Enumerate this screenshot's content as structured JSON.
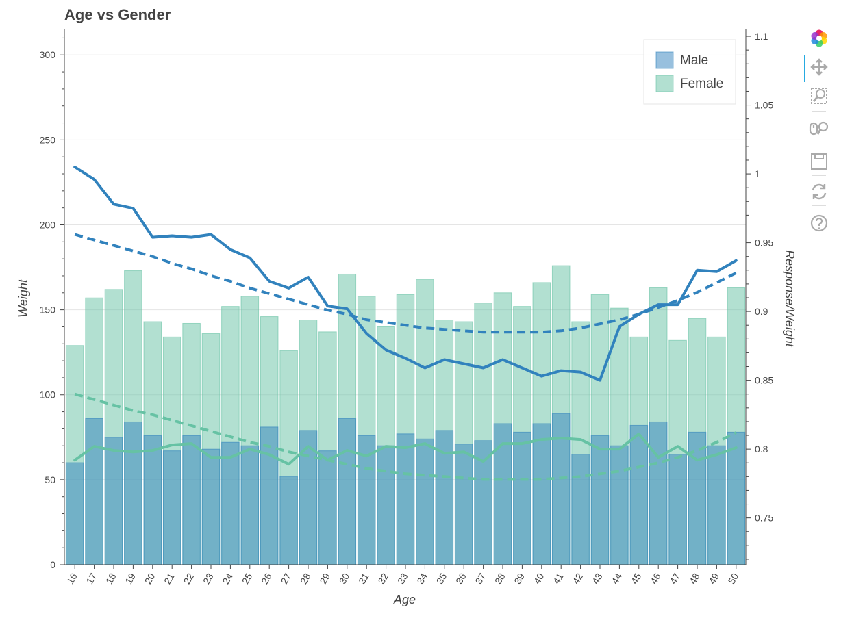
{
  "chart_data": {
    "type": "bar",
    "title": "Age vs Gender",
    "xlabel": "Age",
    "ylabel": "Weight",
    "y2label": "Response/Weight",
    "categories": [
      "16",
      "17",
      "18",
      "19",
      "20",
      "21",
      "22",
      "23",
      "24",
      "25",
      "26",
      "27",
      "28",
      "29",
      "30",
      "31",
      "32",
      "33",
      "34",
      "35",
      "36",
      "37",
      "38",
      "39",
      "40",
      "41",
      "42",
      "43",
      "44",
      "45",
      "46",
      "47",
      "48",
      "49",
      "50"
    ],
    "ylim": [
      0,
      315
    ],
    "y2lim": [
      0.716,
      1.105
    ],
    "yticks": [
      0,
      50,
      100,
      150,
      200,
      250,
      300
    ],
    "y2ticks": [
      0.75,
      0.8,
      0.85,
      0.9,
      0.95,
      1,
      1.05,
      1.1
    ],
    "y2tick_labels": [
      "0.75",
      "0.8",
      "0.85",
      "0.9",
      "0.95",
      "1",
      "1.05",
      "1.1"
    ],
    "grid": true,
    "legend_position": "top-right",
    "series": [
      {
        "name": "Male",
        "kind": "bar",
        "axis": "left",
        "color": "#3182bd",
        "values": [
          60,
          86,
          75,
          84,
          76,
          67,
          76,
          68,
          72,
          70,
          81,
          52,
          79,
          67,
          86,
          76,
          70,
          77,
          74,
          79,
          71,
          73,
          83,
          78,
          83,
          89,
          65,
          76,
          70,
          82,
          84,
          65,
          78,
          70,
          78
        ]
      },
      {
        "name": "Female",
        "kind": "bar",
        "axis": "left",
        "color": "#66c2a4",
        "values": [
          129,
          157,
          162,
          173,
          143,
          134,
          142,
          136,
          152,
          158,
          146,
          126,
          144,
          137,
          171,
          158,
          140,
          159,
          168,
          144,
          143,
          154,
          160,
          152,
          166,
          176,
          143,
          159,
          151,
          134,
          163,
          132,
          145,
          134,
          163
        ]
      },
      {
        "kind": "line",
        "axis": "right",
        "color": "#3182bd",
        "dash": "solid",
        "values": [
          1.005,
          0.996,
          0.978,
          0.975,
          0.954,
          0.955,
          0.954,
          0.956,
          0.945,
          0.939,
          0.922,
          0.917,
          0.925,
          0.904,
          0.902,
          0.884,
          0.872,
          0.866,
          0.859,
          0.865,
          0.862,
          0.859,
          0.865,
          0.859,
          0.853,
          0.857,
          0.856,
          0.85,
          0.889,
          0.898,
          0.905,
          0.905,
          0.93,
          0.929,
          0.937
        ]
      },
      {
        "kind": "line",
        "axis": "right",
        "color": "#3182bd",
        "dash": "dashed",
        "values": [
          0.956,
          0.952,
          0.948,
          0.944,
          0.94,
          0.935,
          0.931,
          0.926,
          0.922,
          0.917,
          0.913,
          0.909,
          0.905,
          0.901,
          0.898,
          0.894,
          0.892,
          0.89,
          0.888,
          0.887,
          0.886,
          0.885,
          0.885,
          0.885,
          0.885,
          0.886,
          0.888,
          0.891,
          0.894,
          0.898,
          0.903,
          0.908,
          0.914,
          0.921,
          0.928
        ]
      },
      {
        "kind": "line",
        "axis": "right",
        "color": "#66c2a4",
        "dash": "solid",
        "values": [
          0.792,
          0.802,
          0.799,
          0.798,
          0.799,
          0.803,
          0.804,
          0.794,
          0.794,
          0.8,
          0.796,
          0.789,
          0.802,
          0.792,
          0.799,
          0.795,
          0.802,
          0.801,
          0.804,
          0.797,
          0.798,
          0.791,
          0.804,
          0.804,
          0.807,
          0.808,
          0.807,
          0.8,
          0.8,
          0.811,
          0.794,
          0.802,
          0.792,
          0.796,
          0.801
        ]
      },
      {
        "kind": "line",
        "axis": "right",
        "color": "#66c2a4",
        "dash": "dashed",
        "values": [
          0.84,
          0.836,
          0.832,
          0.828,
          0.825,
          0.821,
          0.817,
          0.813,
          0.809,
          0.805,
          0.802,
          0.798,
          0.795,
          0.792,
          0.789,
          0.786,
          0.784,
          0.782,
          0.781,
          0.78,
          0.779,
          0.778,
          0.778,
          0.778,
          0.778,
          0.779,
          0.78,
          0.782,
          0.784,
          0.787,
          0.79,
          0.794,
          0.799,
          0.805,
          0.812
        ]
      }
    ]
  },
  "toolbar": {
    "tools": [
      "bokeh-logo-icon",
      "pan-icon",
      "box-zoom-icon",
      "wheel-zoom-icon",
      "save-icon",
      "reset-icon",
      "help-icon"
    ]
  }
}
